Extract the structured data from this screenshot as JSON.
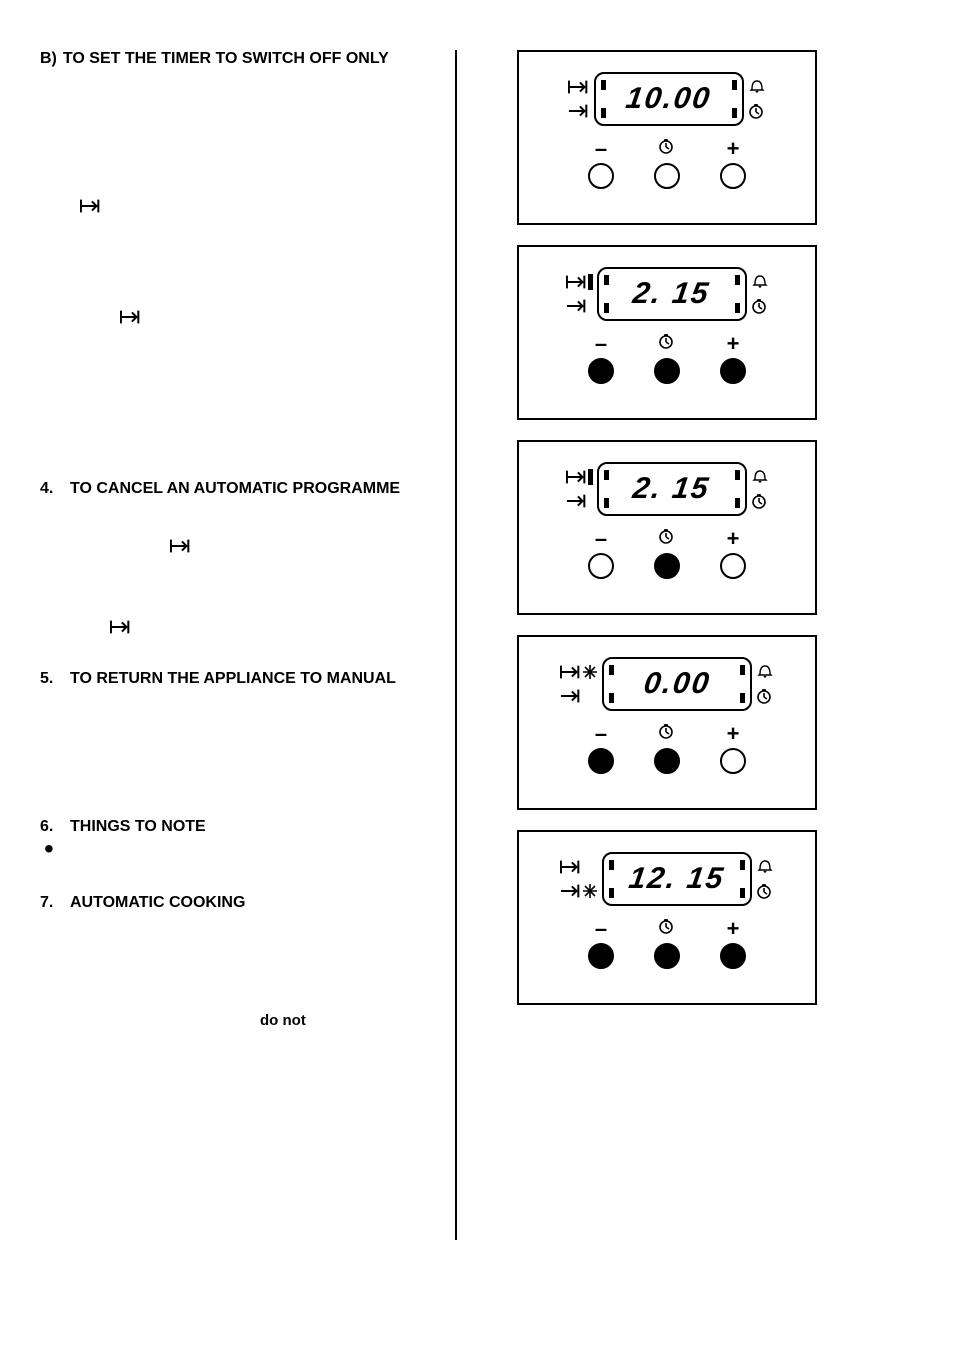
{
  "left": {
    "section_b_label": "B)",
    "section_b_title": "TO SET THE TIMER TO SWITCH OFF ONLY",
    "section4_num": "4.",
    "section4_title": "TO CANCEL AN AUTOMATIC PROGRAMME",
    "section5_num": "5.",
    "section5_title": "TO RETURN THE APPLIANCE TO MANUAL",
    "section6_num": "6.",
    "section6_title": "THINGS TO NOTE",
    "section7_num": "7.",
    "section7_title": "AUTOMATIC COOKING",
    "do_not": "do not"
  },
  "panels": [
    {
      "digits": "10.00",
      "tag_left_top": false,
      "tag_left_bot": false,
      "buttons": [
        "open",
        "open",
        "open"
      ],
      "star_side": null
    },
    {
      "digits": "2. 15",
      "tag_left_top": true,
      "tag_left_bot": false,
      "buttons": [
        "filled",
        "filled",
        "filled"
      ],
      "star_side": null
    },
    {
      "digits": "2. 15",
      "tag_left_top": true,
      "tag_left_bot": false,
      "buttons": [
        "open",
        "filled",
        "open"
      ],
      "star_side": null
    },
    {
      "digits": "0.00",
      "tag_left_top": false,
      "tag_left_bot": false,
      "buttons": [
        "filled",
        "filled",
        "open"
      ],
      "star_side": "left-top"
    },
    {
      "digits": "12. 15",
      "tag_left_top": false,
      "tag_left_bot": false,
      "buttons": [
        "filled",
        "filled",
        "filled"
      ],
      "star_side": "left-bot"
    }
  ]
}
